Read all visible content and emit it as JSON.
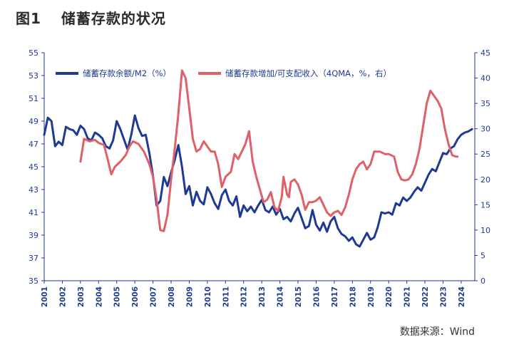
{
  "figure": {
    "number": "图1",
    "title": "储蓄存款的状况",
    "source": "数据来源：Wind"
  },
  "colors": {
    "primary": "#1f3a93",
    "secondary": "#e06068",
    "axis": "#1f3a93",
    "title": "#2b2b2b"
  },
  "chart_data": {
    "type": "line",
    "title": "",
    "xlabel": "",
    "ylabel": "",
    "x_ticks": [
      "2001",
      "2002",
      "2003",
      "2004",
      "2005",
      "2006",
      "2007",
      "2008",
      "2009",
      "2010",
      "2011",
      "2012",
      "2013",
      "2014",
      "2015",
      "2016",
      "2017",
      "2018",
      "2019",
      "2020",
      "2021",
      "2022",
      "2023",
      "2024"
    ],
    "y_left": {
      "lim": [
        35,
        55
      ],
      "ticks": [
        35,
        37,
        39,
        41,
        43,
        45,
        47,
        49,
        51,
        53,
        55
      ]
    },
    "y_right": {
      "lim": [
        0,
        45
      ],
      "ticks": [
        0,
        5,
        10,
        15,
        20,
        25,
        30,
        35,
        40,
        45
      ]
    },
    "grid": false,
    "legend_position": "top",
    "series": [
      {
        "name": "储蓄存款余额/M2（%）",
        "axis": "left",
        "color": "#1f3a93",
        "points": [
          [
            2001.0,
            47.8
          ],
          [
            2001.2,
            49.3
          ],
          [
            2001.4,
            49.0
          ],
          [
            2001.6,
            46.8
          ],
          [
            2001.8,
            47.2
          ],
          [
            2002.0,
            46.9
          ],
          [
            2002.2,
            48.5
          ],
          [
            2002.4,
            48.3
          ],
          [
            2002.6,
            48.2
          ],
          [
            2002.8,
            47.8
          ],
          [
            2003.0,
            48.6
          ],
          [
            2003.2,
            48.3
          ],
          [
            2003.4,
            47.5
          ],
          [
            2003.6,
            47.3
          ],
          [
            2003.8,
            48.0
          ],
          [
            2004.0,
            47.8
          ],
          [
            2004.2,
            47.5
          ],
          [
            2004.4,
            46.8
          ],
          [
            2004.6,
            46.6
          ],
          [
            2004.8,
            47.3
          ],
          [
            2005.0,
            49.0
          ],
          [
            2005.2,
            48.3
          ],
          [
            2005.4,
            47.4
          ],
          [
            2005.6,
            46.5
          ],
          [
            2005.8,
            47.8
          ],
          [
            2006.0,
            49.5
          ],
          [
            2006.2,
            48.4
          ],
          [
            2006.4,
            47.7
          ],
          [
            2006.6,
            47.8
          ],
          [
            2006.8,
            46.2
          ],
          [
            2007.0,
            44.2
          ],
          [
            2007.2,
            41.6
          ],
          [
            2007.4,
            42.0
          ],
          [
            2007.6,
            44.1
          ],
          [
            2007.8,
            43.3
          ],
          [
            2008.0,
            44.5
          ],
          [
            2008.2,
            45.6
          ],
          [
            2008.4,
            46.9
          ],
          [
            2008.6,
            45.0
          ],
          [
            2008.8,
            42.6
          ],
          [
            2009.0,
            43.3
          ],
          [
            2009.2,
            41.6
          ],
          [
            2009.4,
            42.8
          ],
          [
            2009.6,
            42.0
          ],
          [
            2009.8,
            41.7
          ],
          [
            2010.0,
            43.2
          ],
          [
            2010.2,
            42.6
          ],
          [
            2010.4,
            41.8
          ],
          [
            2010.6,
            41.3
          ],
          [
            2010.8,
            42.5
          ],
          [
            2011.0,
            43.0
          ],
          [
            2011.2,
            42.0
          ],
          [
            2011.4,
            41.6
          ],
          [
            2011.6,
            42.4
          ],
          [
            2011.8,
            40.6
          ],
          [
            2012.0,
            41.6
          ],
          [
            2012.2,
            41.1
          ],
          [
            2012.4,
            41.5
          ],
          [
            2012.6,
            41.0
          ],
          [
            2012.8,
            41.6
          ],
          [
            2013.0,
            42.1
          ],
          [
            2013.2,
            41.2
          ],
          [
            2013.4,
            41.0
          ],
          [
            2013.6,
            41.5
          ],
          [
            2013.8,
            40.8
          ],
          [
            2014.0,
            41.3
          ],
          [
            2014.2,
            40.4
          ],
          [
            2014.4,
            40.6
          ],
          [
            2014.6,
            40.2
          ],
          [
            2014.8,
            40.9
          ],
          [
            2015.0,
            41.4
          ],
          [
            2015.2,
            40.5
          ],
          [
            2015.4,
            39.6
          ],
          [
            2015.6,
            39.8
          ],
          [
            2015.8,
            41.2
          ],
          [
            2016.0,
            39.9
          ],
          [
            2016.2,
            39.4
          ],
          [
            2016.4,
            40.1
          ],
          [
            2016.6,
            39.3
          ],
          [
            2016.8,
            40.2
          ],
          [
            2017.0,
            40.6
          ],
          [
            2017.2,
            39.6
          ],
          [
            2017.4,
            39.1
          ],
          [
            2017.6,
            38.9
          ],
          [
            2017.8,
            38.5
          ],
          [
            2018.0,
            38.8
          ],
          [
            2018.2,
            38.2
          ],
          [
            2018.4,
            38.0
          ],
          [
            2018.6,
            38.6
          ],
          [
            2018.8,
            39.2
          ],
          [
            2019.0,
            38.6
          ],
          [
            2019.2,
            38.8
          ],
          [
            2019.4,
            39.7
          ],
          [
            2019.6,
            41.0
          ],
          [
            2019.8,
            40.9
          ],
          [
            2020.0,
            41.0
          ],
          [
            2020.2,
            40.8
          ],
          [
            2020.4,
            41.8
          ],
          [
            2020.6,
            41.6
          ],
          [
            2020.8,
            42.3
          ],
          [
            2021.0,
            42.0
          ],
          [
            2021.2,
            42.3
          ],
          [
            2021.4,
            42.8
          ],
          [
            2021.6,
            43.2
          ],
          [
            2021.8,
            42.9
          ],
          [
            2022.0,
            43.6
          ],
          [
            2022.2,
            44.3
          ],
          [
            2022.4,
            44.8
          ],
          [
            2022.6,
            44.6
          ],
          [
            2022.8,
            45.4
          ],
          [
            2023.0,
            46.2
          ],
          [
            2023.2,
            46.1
          ],
          [
            2023.4,
            46.6
          ],
          [
            2023.6,
            46.8
          ],
          [
            2023.8,
            47.4
          ],
          [
            2024.0,
            47.8
          ],
          [
            2024.2,
            48.0
          ],
          [
            2024.4,
            48.1
          ],
          [
            2024.6,
            48.3
          ]
        ]
      },
      {
        "name": "储蓄存款增加/可支配收入（4QMA，%，右）",
        "axis": "right",
        "color": "#e06068",
        "points": [
          [
            2003.0,
            23.5
          ],
          [
            2003.2,
            28.0
          ],
          [
            2003.5,
            27.5
          ],
          [
            2003.8,
            27.8
          ],
          [
            2004.0,
            27.2
          ],
          [
            2004.3,
            26.8
          ],
          [
            2004.5,
            24.0
          ],
          [
            2004.7,
            21.0
          ],
          [
            2004.9,
            22.5
          ],
          [
            2005.2,
            23.5
          ],
          [
            2005.5,
            24.8
          ],
          [
            2005.7,
            26.5
          ],
          [
            2005.9,
            27.5
          ],
          [
            2006.2,
            27.0
          ],
          [
            2006.5,
            25.5
          ],
          [
            2006.8,
            23.0
          ],
          [
            2007.0,
            20.5
          ],
          [
            2007.2,
            16.0
          ],
          [
            2007.4,
            10.0
          ],
          [
            2007.6,
            9.8
          ],
          [
            2007.8,
            13.0
          ],
          [
            2008.0,
            20.0
          ],
          [
            2008.2,
            26.0
          ],
          [
            2008.4,
            33.0
          ],
          [
            2008.6,
            41.5
          ],
          [
            2008.8,
            40.0
          ],
          [
            2009.0,
            34.0
          ],
          [
            2009.2,
            28.0
          ],
          [
            2009.4,
            25.5
          ],
          [
            2009.6,
            26.0
          ],
          [
            2009.8,
            27.5
          ],
          [
            2010.0,
            26.5
          ],
          [
            2010.2,
            25.5
          ],
          [
            2010.4,
            25.5
          ],
          [
            2010.6,
            23.0
          ],
          [
            2010.8,
            18.5
          ],
          [
            2011.0,
            20.5
          ],
          [
            2011.3,
            21.5
          ],
          [
            2011.5,
            25.0
          ],
          [
            2011.7,
            24.0
          ],
          [
            2011.9,
            25.5
          ],
          [
            2012.1,
            27.0
          ],
          [
            2012.3,
            29.5
          ],
          [
            2012.5,
            23.5
          ],
          [
            2012.7,
            20.5
          ],
          [
            2012.9,
            18.0
          ],
          [
            2013.1,
            15.5
          ],
          [
            2013.3,
            16.0
          ],
          [
            2013.5,
            17.5
          ],
          [
            2013.7,
            14.5
          ],
          [
            2013.9,
            13.8
          ],
          [
            2014.1,
            16.5
          ],
          [
            2014.2,
            20.5
          ],
          [
            2014.4,
            17.0
          ],
          [
            2014.5,
            16.5
          ],
          [
            2014.6,
            19.5
          ],
          [
            2014.8,
            20.0
          ],
          [
            2015.0,
            19.0
          ],
          [
            2015.2,
            17.0
          ],
          [
            2015.4,
            14.0
          ],
          [
            2015.6,
            15.5
          ],
          [
            2015.8,
            15.5
          ],
          [
            2016.0,
            15.8
          ],
          [
            2016.2,
            16.5
          ],
          [
            2016.4,
            15.0
          ],
          [
            2016.6,
            13.5
          ],
          [
            2016.8,
            12.8
          ],
          [
            2017.0,
            13.5
          ],
          [
            2017.2,
            13.8
          ],
          [
            2017.4,
            13.0
          ],
          [
            2017.6,
            14.5
          ],
          [
            2017.8,
            17.0
          ],
          [
            2018.0,
            20.0
          ],
          [
            2018.2,
            22.0
          ],
          [
            2018.4,
            23.0
          ],
          [
            2018.6,
            23.5
          ],
          [
            2018.8,
            22.0
          ],
          [
            2019.0,
            23.0
          ],
          [
            2019.2,
            25.5
          ],
          [
            2019.5,
            25.5
          ],
          [
            2019.8,
            25.0
          ],
          [
            2020.0,
            25.0
          ],
          [
            2020.3,
            24.5
          ],
          [
            2020.5,
            21.5
          ],
          [
            2020.7,
            20.0
          ],
          [
            2020.9,
            19.8
          ],
          [
            2021.1,
            20.0
          ],
          [
            2021.3,
            21.0
          ],
          [
            2021.5,
            23.0
          ],
          [
            2021.7,
            26.0
          ],
          [
            2021.9,
            30.5
          ],
          [
            2022.1,
            35.0
          ],
          [
            2022.3,
            37.5
          ],
          [
            2022.5,
            36.5
          ],
          [
            2022.7,
            35.5
          ],
          [
            2022.9,
            34.0
          ],
          [
            2023.1,
            30.0
          ],
          [
            2023.3,
            27.0
          ],
          [
            2023.5,
            24.8
          ],
          [
            2023.7,
            24.5
          ],
          [
            2023.8,
            24.5
          ]
        ]
      }
    ]
  }
}
